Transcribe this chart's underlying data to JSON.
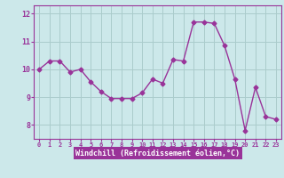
{
  "x": [
    0,
    1,
    2,
    3,
    4,
    5,
    6,
    7,
    8,
    9,
    10,
    11,
    12,
    13,
    14,
    15,
    16,
    17,
    18,
    19,
    20,
    21,
    22,
    23
  ],
  "y": [
    10.0,
    10.3,
    10.3,
    9.9,
    10.0,
    9.55,
    9.2,
    8.95,
    8.95,
    8.95,
    9.15,
    9.65,
    9.5,
    10.35,
    10.3,
    11.7,
    11.7,
    11.65,
    10.85,
    9.65,
    7.8,
    9.35,
    8.3,
    8.2
  ],
  "line_color": "#993399",
  "marker": "D",
  "marker_size": 2.5,
  "bg_color": "#cce8ea",
  "grid_color": "#aacccc",
  "xlabel": "Windchill (Refroidissement éolien,°C)",
  "xlabel_bg": "#993399",
  "xlabel_fg": "#ffffff",
  "tick_color": "#993399",
  "ylim": [
    7.5,
    12.3
  ],
  "xlim": [
    -0.5,
    23.5
  ],
  "yticks": [
    8,
    9,
    10,
    11,
    12
  ],
  "xticks": [
    0,
    1,
    2,
    3,
    4,
    5,
    6,
    7,
    8,
    9,
    10,
    11,
    12,
    13,
    14,
    15,
    16,
    17,
    18,
    19,
    20,
    21,
    22,
    23
  ],
  "spine_color": "#993399",
  "linewidth": 1.0
}
